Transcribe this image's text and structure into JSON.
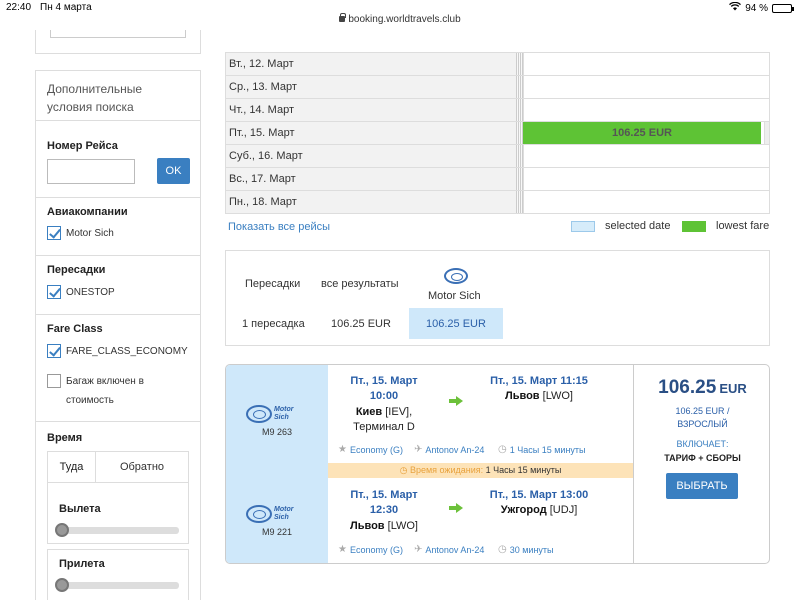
{
  "statusbar": {
    "time": "22:40",
    "date": "Пн 4 марта",
    "battery": "94 %",
    "battery_level": 0.94
  },
  "browser": {
    "url": "booking.worldtravels.club"
  },
  "sidebar": {
    "title": "Дополнительные условия поиска",
    "flight_number_label": "Номер Рейса",
    "flight_number_value": "",
    "ok_label": "OK",
    "airlines_label": "Авиакомпании",
    "airlines": [
      {
        "label": "Motor Sich",
        "checked": true
      }
    ],
    "stops_label": "Пересадки",
    "stops": [
      {
        "label": "ONESTOP",
        "checked": true
      }
    ],
    "fare_class_label": "Fare Class",
    "fare_classes": [
      {
        "label": "FARE_CLASS_ECONOMY",
        "checked": true
      },
      {
        "label": "Багаж включен в стоимость",
        "checked": false
      }
    ],
    "time_label": "Время",
    "tabs": [
      "Туда",
      "Обратно"
    ],
    "departure_label": "Вылета",
    "arrival_label": "Прилета"
  },
  "dates": [
    {
      "label": "Вт., 12. Март",
      "fare": ""
    },
    {
      "label": "Ср., 13. Март",
      "fare": ""
    },
    {
      "label": "Чт., 14. Март",
      "fare": ""
    },
    {
      "label": "Пт., 15. Март",
      "fare": "106.25 EUR"
    },
    {
      "label": "Суб., 16. Март",
      "fare": ""
    },
    {
      "label": "Вс., 17. Март",
      "fare": ""
    },
    {
      "label": "Пн., 18. Март",
      "fare": ""
    }
  ],
  "show_all_label": "Показать все рейсы",
  "legend": {
    "selected_label": "selected date",
    "selected_color": "#d6ecfa",
    "lowest_label": "lowest fare",
    "lowest_color": "#5ec335"
  },
  "matrix": {
    "stops_header": "Пересадки",
    "all_header": "все результаты",
    "airline_header": "Motor Sich",
    "row_label": "1 пересадка",
    "all_value": "106.25 EUR",
    "airline_value": "106.25 EUR"
  },
  "card": {
    "segments": [
      {
        "flight_code": "M9 263",
        "dep_datetime": "Пт., 15. Март 10:00",
        "dep_city": "Киев",
        "dep_code": "[IEV],",
        "dep_terminal": "Терминал D",
        "arr_datetime": "Пт., 15. Март 11:15",
        "arr_city": "Львов",
        "arr_code": "[LWO]",
        "cabin": "Economy (G)",
        "aircraft": "Antonov An-24",
        "duration": "1 Часы 15 минуты"
      },
      {
        "flight_code": "M9 221",
        "dep_datetime": "Пт., 15. Март 12:30",
        "dep_city": "Львов",
        "dep_code": "[LWO]",
        "arr_datetime": "Пт., 15. Март 13:00",
        "arr_city": "Ужгород",
        "arr_code": "[UDJ]",
        "cabin": "Economy (G)",
        "aircraft": "Antonov An-24",
        "duration": "30 минуты"
      }
    ],
    "wait_label": "Время ожидания:",
    "wait_value": "1 Часы 15 минуты",
    "price_number": "106.25",
    "price_currency": "EUR",
    "price_per": "106.25 EUR /",
    "price_pax": "ВЗРОСЛЫЙ",
    "includes_label": "ВКЛЮЧАЕТ:",
    "includes_value": "ТАРИФ + СБОРЫ",
    "choose_label": "ВЫБРАТЬ",
    "logo_text": "Motor Sich"
  }
}
